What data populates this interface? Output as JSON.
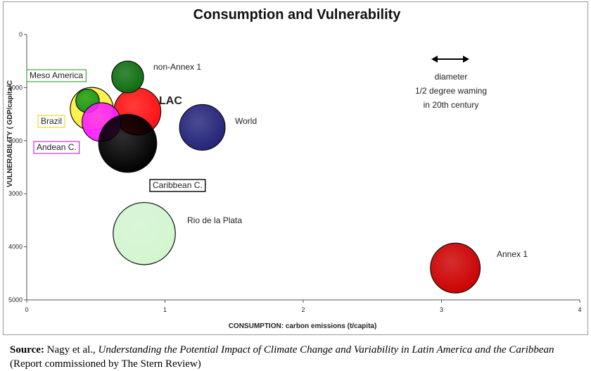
{
  "chart_data": {
    "type": "bubble",
    "title": "Consumption and Vulnerability",
    "xlabel": "CONSUMPTION: carbon emissions (t/capita)",
    "ylabel": "VULNERABILITY ( GDP/capita/C",
    "xlim": [
      0,
      4
    ],
    "ylim": [
      0,
      5000
    ],
    "y_reversed": true,
    "x_ticks": [
      "0",
      "1",
      "2",
      "3",
      "4"
    ],
    "y_ticks": [
      "0",
      "1000",
      "2000",
      "3000",
      "4000",
      "5000"
    ],
    "grid": false,
    "series": [
      {
        "name": "Rio de la Plata",
        "x": 0.85,
        "y": 3750,
        "diameter_x": 0.45,
        "color": "#d2f5cf",
        "label_style": "plain"
      },
      {
        "name": "World",
        "x": 1.27,
        "y": 1750,
        "diameter_x": 0.33,
        "color": "#23237a",
        "label_style": "plain"
      },
      {
        "name": "LAC",
        "x": 0.8,
        "y": 1450,
        "diameter_x": 0.34,
        "color": "#ff1010",
        "label_style": "bold"
      },
      {
        "name": "Brazil",
        "x": 0.47,
        "y": 1400,
        "diameter_x": 0.31,
        "color": "#fff040",
        "label_style": "box"
      },
      {
        "name": "Meso America",
        "x": 0.44,
        "y": 1250,
        "diameter_x": 0.17,
        "color": "#1a9a1a",
        "label_style": "box"
      },
      {
        "name": "Andean C.",
        "x": 0.54,
        "y": 1650,
        "diameter_x": 0.28,
        "color": "#ff22ff",
        "label_style": "box"
      },
      {
        "name": "Caribbean C.",
        "x": 0.73,
        "y": 2050,
        "diameter_x": 0.42,
        "color": "#000000",
        "label_style": "box"
      },
      {
        "name": "non-Annex 1",
        "x": 0.73,
        "y": 800,
        "diameter_x": 0.23,
        "color": "#0e6e0e",
        "label_style": "plain"
      },
      {
        "name": "Annex 1",
        "x": 3.1,
        "y": 4400,
        "diameter_x": 0.36,
        "color": "#cc0000",
        "label_style": "plain"
      }
    ],
    "annotation": [
      "diameter",
      "1/2 degree waming",
      "in 20th century"
    ]
  },
  "source": {
    "label": "Source:",
    "authors": "Nagy et al.,",
    "title": "Understanding the Potential Impact of Climate Change and Variability in Latin America and the Caribbean",
    "note": "(Report commissioned by The Stern Review)"
  }
}
